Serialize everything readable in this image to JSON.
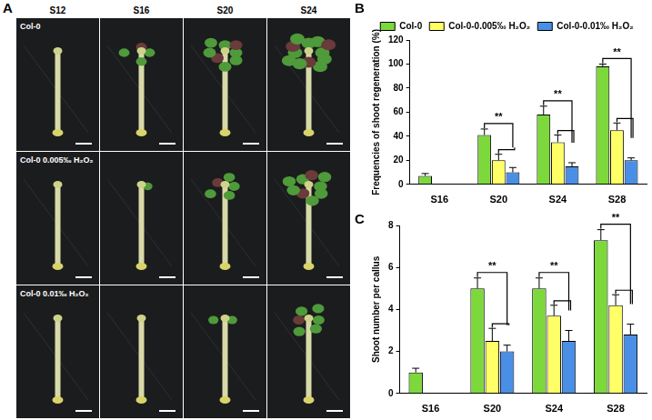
{
  "panel_a": {
    "panel_label": "A",
    "columns": [
      "S12",
      "S16",
      "S20",
      "S24"
    ],
    "rows": [
      "Col-0",
      "Col-0  0.005‰ H₂O₂",
      "Col-0  0.01‰ H₂O₂"
    ]
  },
  "chart_data": [
    {
      "panel_label": "B",
      "type": "bar",
      "y_label": "Frequencies of shoot regeneration (%)",
      "categories": [
        "S16",
        "S20",
        "S24",
        "S28"
      ],
      "series": [
        {
          "name": "Col-0",
          "color": "#7dd83c",
          "values": [
            7,
            41,
            58,
            98
          ],
          "errors": [
            2,
            5,
            7,
            2
          ]
        },
        {
          "name": "Col-0-0.005‰ H₂O₂",
          "color": "#ffff66",
          "values": [
            0,
            20,
            35,
            45
          ],
          "errors": [
            0,
            5,
            6,
            6
          ]
        },
        {
          "name": "Col-0-0.01‰ H₂O₂",
          "color": "#4a8fe6",
          "values": [
            0,
            10,
            15,
            20
          ],
          "errors": [
            0,
            4,
            3,
            2
          ]
        }
      ],
      "ylim": [
        0,
        120
      ],
      "yticks": [
        0,
        20,
        40,
        60,
        80,
        100,
        120
      ],
      "grid": false,
      "legend": "top",
      "annotations": [
        {
          "text": "**",
          "category": "S20"
        },
        {
          "text": "**",
          "category": "S24"
        },
        {
          "text": "**",
          "category": "S28"
        }
      ]
    },
    {
      "panel_label": "C",
      "type": "bar",
      "y_label": "Shoot number per callus",
      "categories": [
        "S16",
        "S20",
        "S24",
        "S28"
      ],
      "series": [
        {
          "name": "Col-0",
          "color": "#7dd83c",
          "values": [
            1,
            5,
            5,
            7.3
          ],
          "errors": [
            0.2,
            0.5,
            0.5,
            0.5
          ]
        },
        {
          "name": "Col-0-0.005‰ H₂O₂",
          "color": "#ffff66",
          "values": [
            0,
            2.5,
            3.7,
            4.2
          ],
          "errors": [
            0,
            0.6,
            0.5,
            0.5
          ]
        },
        {
          "name": "Col-0-0.01‰ H₂O₂",
          "color": "#4a8fe6",
          "values": [
            0,
            2,
            2.5,
            2.8
          ],
          "errors": [
            0,
            0.3,
            0.5,
            0.5
          ]
        }
      ],
      "ylim": [
        0,
        8
      ],
      "yticks": [
        0,
        2,
        4,
        6,
        8
      ],
      "grid": false,
      "annotations": [
        {
          "text": "**",
          "category": "S20"
        },
        {
          "text": "**",
          "category": "S24"
        },
        {
          "text": "**",
          "category": "S28"
        }
      ]
    }
  ]
}
